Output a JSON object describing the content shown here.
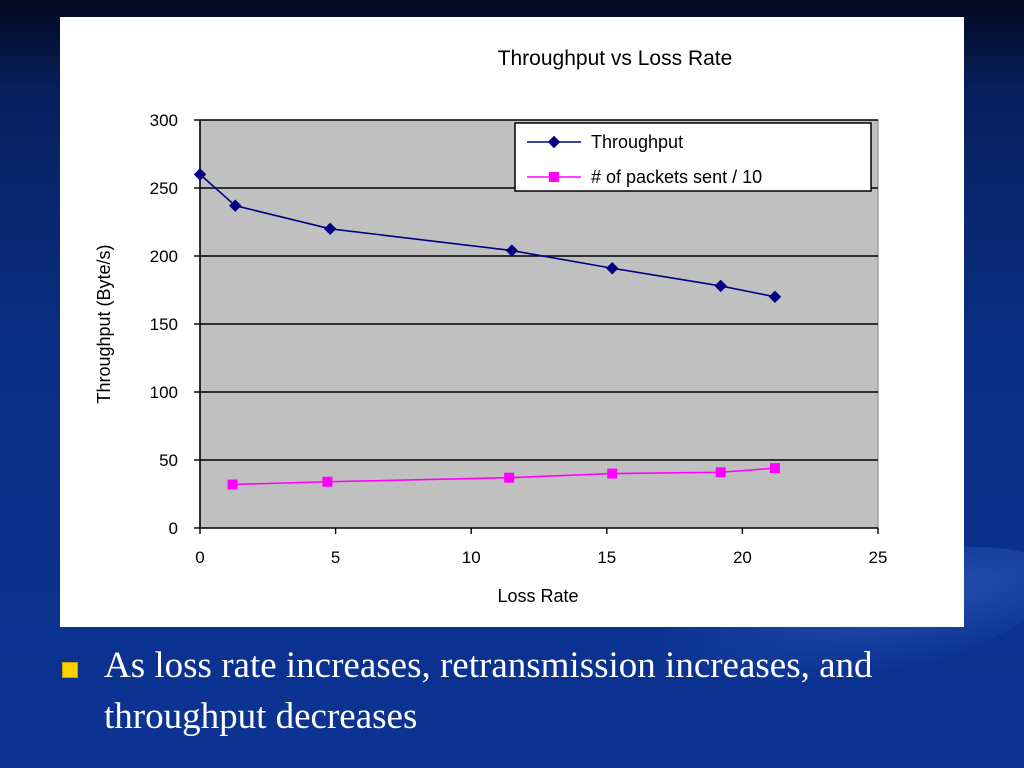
{
  "slide": {
    "bullet_text": "As loss rate increases, retransmission increases, and throughput decreases",
    "bullet_color": "#ffd200",
    "background_color": "#0a2f86"
  },
  "chart_data": {
    "type": "line",
    "title": "Throughput vs Loss Rate",
    "xlabel": "Loss Rate",
    "ylabel": "Throughput (Byte/s)",
    "xlim": [
      0,
      25
    ],
    "ylim": [
      0,
      300
    ],
    "xticks": [
      0,
      5,
      10,
      15,
      20,
      25
    ],
    "yticks": [
      0,
      50,
      100,
      150,
      200,
      250,
      300
    ],
    "grid": "horizontal",
    "plot_background": "#c0c0c0",
    "legend_position": "top-right",
    "series": [
      {
        "name": "Throughput",
        "color": "#000080",
        "marker": "diamond",
        "points": [
          [
            0,
            260
          ],
          [
            1.3,
            237
          ],
          [
            4.8,
            220
          ],
          [
            11.5,
            204
          ],
          [
            15.2,
            191
          ],
          [
            19.2,
            178
          ],
          [
            21.2,
            170
          ]
        ]
      },
      {
        "name": "# of packets sent / 10",
        "color": "#ff00ff",
        "marker": "square",
        "points": [
          [
            1.2,
            32
          ],
          [
            4.7,
            34
          ],
          [
            11.4,
            37
          ],
          [
            15.2,
            40
          ],
          [
            19.2,
            41
          ],
          [
            21.2,
            44
          ]
        ]
      }
    ]
  }
}
